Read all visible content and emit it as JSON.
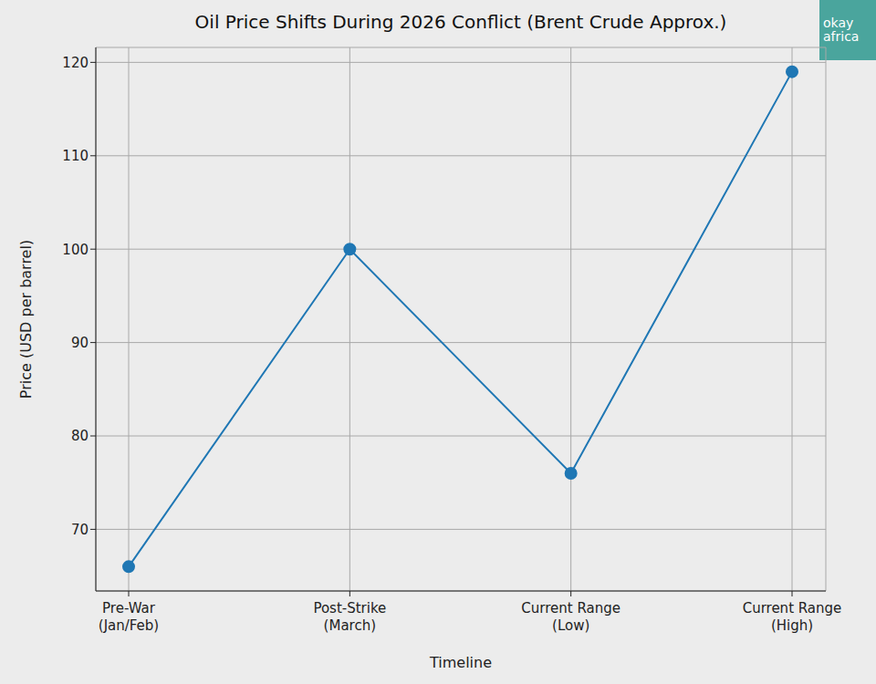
{
  "chart_data": {
    "type": "line",
    "title": "Oil Price Shifts During 2026 Conflict (Brent Crude Approx.)",
    "logo": [
      "okay",
      "africa"
    ],
    "x_label": "Timeline",
    "y_label": "Price (USD per barrel)",
    "categories": [
      "Pre-War (Jan/Feb)",
      "Post-Strike (March)",
      "Current Range (Low)",
      "Current Range (High)"
    ],
    "values": [
      66,
      100,
      76,
      119
    ],
    "color": "#1f77b4",
    "marker": "circle",
    "line_style": "solid",
    "ylim": [
      63.4,
      121.6
    ],
    "yticks": [
      70,
      80,
      90,
      100,
      110,
      120
    ],
    "grid": true
  }
}
